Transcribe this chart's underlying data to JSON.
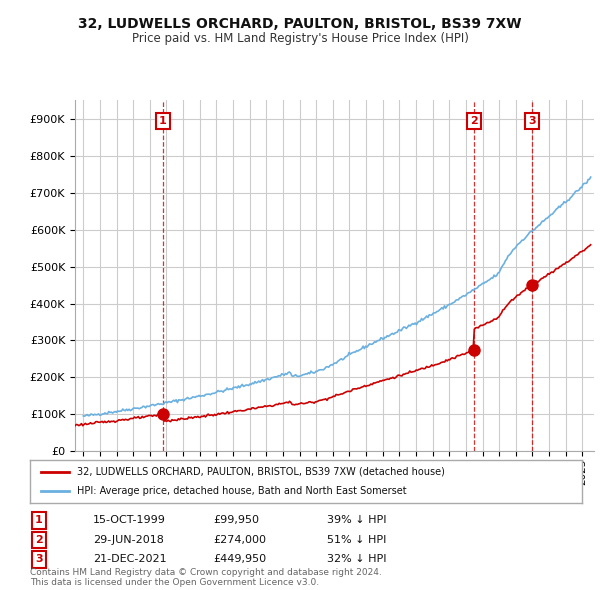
{
  "title": "32, LUDWELLS ORCHARD, PAULTON, BRISTOL, BS39 7XW",
  "subtitle": "Price paid vs. HM Land Registry's House Price Index (HPI)",
  "purchases": [
    {
      "date_num": 1999.79,
      "price": 99950,
      "label": "1",
      "date_str": "15-OCT-1999",
      "pct": "39% ↓ HPI"
    },
    {
      "date_num": 2018.49,
      "price": 274000,
      "label": "2",
      "date_str": "29-JUN-2018",
      "pct": "51% ↓ HPI"
    },
    {
      "date_num": 2021.97,
      "price": 449950,
      "label": "3",
      "date_str": "21-DEC-2021",
      "pct": "32% ↓ HPI"
    }
  ],
  "legend_line1": "32, LUDWELLS ORCHARD, PAULTON, BRISTOL, BS39 7XW (detached house)",
  "legend_line2": "HPI: Average price, detached house, Bath and North East Somerset",
  "footer1": "Contains HM Land Registry data © Crown copyright and database right 2024.",
  "footer2": "This data is licensed under the Open Government Licence v3.0.",
  "ylim": [
    0,
    950000
  ],
  "xlim_start": 1994.5,
  "xlim_end": 2025.7,
  "hpi_color": "#6ab0e0",
  "price_color": "#cc0000",
  "background_color": "#ffffff",
  "grid_color": "#cccccc"
}
